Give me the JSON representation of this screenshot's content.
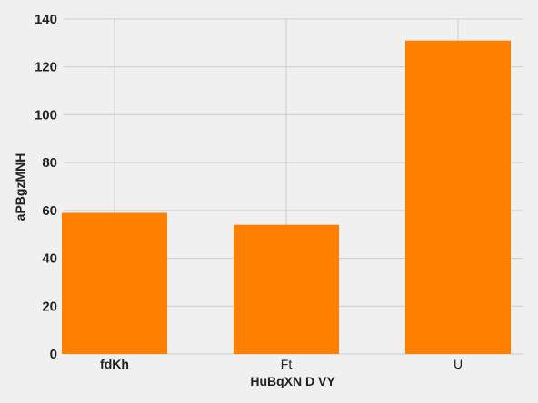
{
  "chart_data": {
    "type": "bar",
    "title": "",
    "xlabel": "HuBqXN D VY",
    "ylabel": "aPBgzMNH",
    "categories": [
      "fdKh",
      "Ft",
      "U"
    ],
    "category_label_bold": [
      true,
      false,
      false
    ],
    "values": [
      59,
      54,
      131
    ],
    "ylim": [
      0,
      140
    ],
    "yticks": [
      0,
      20,
      40,
      60,
      80,
      100,
      120,
      140
    ],
    "grid": true,
    "legend": "none",
    "bar_color": "#ff8000",
    "background_color": "#f0f0f0",
    "grid_color": "#cbcbcb"
  }
}
